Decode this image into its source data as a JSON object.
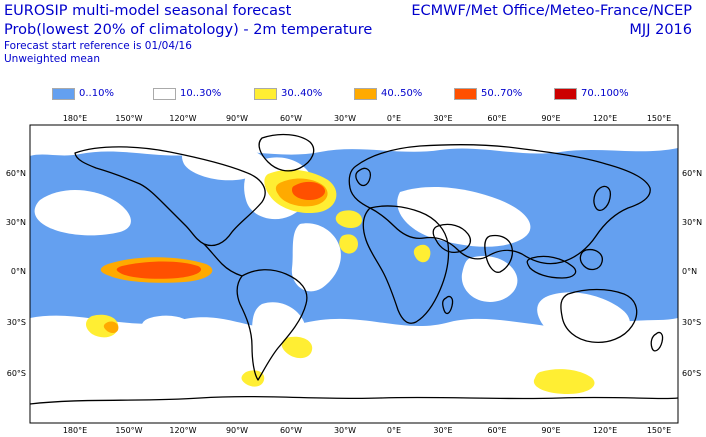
{
  "header": {
    "title_line1": "EUROSIP multi-model seasonal forecast",
    "title_line2": "Prob(lowest 20% of climatology) - 2m temperature",
    "reference": "Forecast start reference is 01/04/16",
    "weighting": "Unweighted mean",
    "centres": "ECMWF/Met Office/Meteo-France/NCEP",
    "period": "MJJ 2016"
  },
  "legend": [
    {
      "label": "0..10%",
      "color": "#64a0f0"
    },
    {
      "label": "10..30%",
      "color": "#ffffff"
    },
    {
      "label": "30..40%",
      "color": "#ffee33"
    },
    {
      "label": "40..50%",
      "color": "#ffaa00"
    },
    {
      "label": "50..70%",
      "color": "#ff5000"
    },
    {
      "label": "70..100%",
      "color": "#cc0000"
    }
  ],
  "axes": {
    "lon_labels_top": [
      "180°E",
      "150°W",
      "120°W",
      "90°W",
      "60°W",
      "30°W",
      "0°E",
      "30°E",
      "60°E",
      "90°E",
      "120°E",
      "150°E"
    ],
    "lon_labels_bottom": [
      "180°E",
      "150°W",
      "120°W",
      "90°W",
      "60°W",
      "30°W",
      "0°E",
      "30°E",
      "60°E",
      "90°E",
      "120°E",
      "150°E"
    ],
    "lat_labels_left": [
      "60°N",
      "30°N",
      "0°N",
      "30°S",
      "60°S"
    ],
    "lat_labels_right": [
      "60°N",
      "30°N",
      "0°N",
      "30°S",
      "60°S"
    ]
  },
  "map": {
    "ocean_color": "#64a0f0",
    "coast_color": "#000000"
  }
}
